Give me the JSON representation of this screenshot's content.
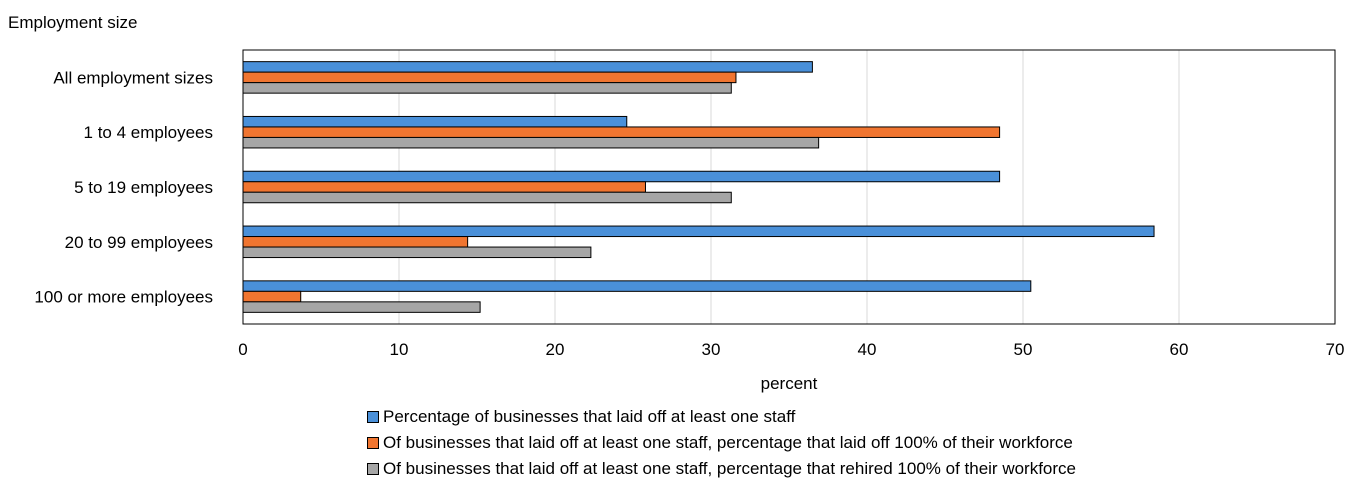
{
  "chart_data": {
    "type": "bar",
    "orientation": "horizontal",
    "ylabel": "Employment size",
    "xlabel": "percent",
    "categories": [
      "All employment sizes",
      "1 to 4 employees",
      "5 to 19 employees",
      "20 to 99 employees",
      "100 or more employees"
    ],
    "xlim": [
      0,
      70
    ],
    "xticks": [
      0,
      10,
      20,
      30,
      40,
      50,
      60,
      70
    ],
    "grid": "vertical",
    "legend_position": "bottom",
    "series": [
      {
        "name": "Percentage of businesses that laid off at least one staff",
        "color": "#4a90d9",
        "values": [
          36.5,
          24.6,
          48.5,
          58.4,
          50.5
        ]
      },
      {
        "name": "Of businesses that laid off at least one staff, percentage that laid off 100% of their workforce",
        "color": "#f07530",
        "values": [
          31.6,
          48.5,
          25.8,
          14.4,
          3.7
        ]
      },
      {
        "name": "Of businesses that laid off at least one staff, percentage that rehired 100% of their workforce",
        "color": "#a6a6a6",
        "values": [
          31.3,
          36.9,
          31.3,
          22.3,
          15.2
        ]
      }
    ]
  }
}
